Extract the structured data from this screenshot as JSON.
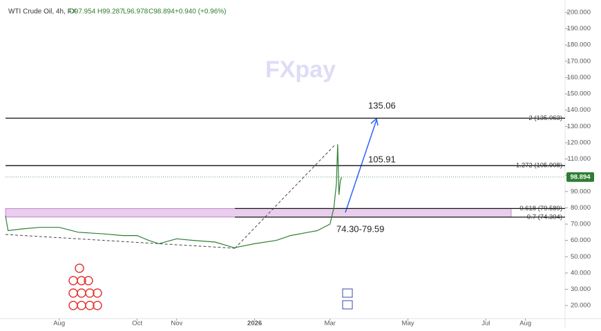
{
  "chart_data": {
    "type": "line",
    "watermark": "FXpay",
    "header": {
      "symbol": "WTI Crude Oil, 4h, FX",
      "open": "O97.954",
      "high": "H99.287",
      "low": "L96.978",
      "close": "C98.894",
      "change": "+0.940 (+0.96%)"
    },
    "x": [
      -42,
      -40,
      -30,
      -15,
      0,
      15,
      35,
      50,
      61,
      70,
      78,
      92,
      105,
      122,
      137,
      153,
      170,
      181,
      195,
      202,
      212,
      215,
      217,
      218,
      219,
      220,
      221
    ],
    "values": [
      75,
      66,
      67,
      68,
      68,
      65,
      64,
      63,
      63,
      60,
      58,
      61,
      60,
      59,
      55.5,
      58,
      60,
      63,
      65,
      66,
      70,
      80,
      95,
      119,
      88,
      96,
      98.894
    ],
    "color": "#2e7d32",
    "xlim": [
      -42,
      396
    ],
    "xticks": [
      {
        "value": 0,
        "label": "Aug"
      },
      {
        "value": 61,
        "label": "Oct"
      },
      {
        "value": 92,
        "label": "Nov"
      },
      {
        "value": 153,
        "label": "2026"
      },
      {
        "value": 212,
        "label": "Mar"
      },
      {
        "value": 273,
        "label": "May"
      },
      {
        "value": 334,
        "label": "Jul"
      },
      {
        "value": 365,
        "label": "Aug"
      }
    ],
    "ylim": [
      12,
      205.5
    ],
    "yticks": [
      {
        "value": 20,
        "label": "20.000"
      },
      {
        "value": 30,
        "label": "30.000"
      },
      {
        "value": 40,
        "label": "40.000"
      },
      {
        "value": 50,
        "label": "50.000"
      },
      {
        "value": 60,
        "label": "60.000"
      },
      {
        "value": 70,
        "label": "70.000"
      },
      {
        "value": 80,
        "label": "80.000"
      },
      {
        "value": 90,
        "label": "90.000"
      },
      {
        "value": 100,
        "label": "100.000"
      },
      {
        "value": 110,
        "label": "110.000"
      },
      {
        "value": 120,
        "label": "120.000"
      },
      {
        "value": 130,
        "label": "130.000"
      },
      {
        "value": 140,
        "label": "140.000"
      },
      {
        "value": 150,
        "label": "150.000"
      },
      {
        "value": 160,
        "label": "160.000"
      },
      {
        "value": 170,
        "label": "170.000"
      },
      {
        "value": 180,
        "label": "180.000"
      },
      {
        "value": 190,
        "label": "190.000"
      },
      {
        "value": 200,
        "label": "200.000"
      }
    ],
    "levels": [
      {
        "value": 135.063,
        "label": "2 (135.063)",
        "full": true
      },
      {
        "value": 105.908,
        "label": "1.272 (105.908)",
        "full": true
      },
      {
        "value": 79.589,
        "label": "0.618 (79.589)",
        "full": false
      },
      {
        "value": 74.304,
        "label": "0.7 (74.304)",
        "full": false
      }
    ],
    "price_badge": 98.894,
    "annotations": [
      "135.06",
      "105.91",
      "74.30-79.59"
    ]
  }
}
